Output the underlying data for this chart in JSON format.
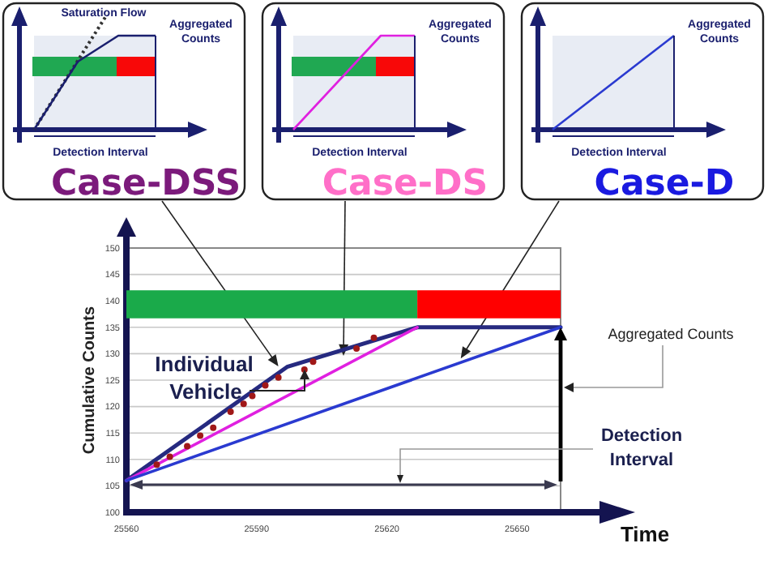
{
  "chart_data": {
    "type": "line",
    "xlabel": "Time",
    "ylabel": "Cumulative Counts",
    "xlim": [
      25560,
      25660
    ],
    "ylim": [
      100,
      150
    ],
    "xticks": [
      25560,
      25590,
      25620,
      25650
    ],
    "yticks": [
      100,
      105,
      110,
      115,
      120,
      125,
      130,
      135,
      140,
      145,
      150
    ],
    "grid": "y",
    "series": [
      {
        "color": "#262a80",
        "x": [
          25560,
          25597,
          25627,
          25660
        ],
        "values": [
          106,
          127.5,
          135,
          135
        ]
      },
      {
        "color": "#e020e0",
        "x": [
          25560,
          25627
        ],
        "values": [
          106,
          135
        ]
      },
      {
        "color": "#2a3ad0",
        "x": [
          25560,
          25660
        ],
        "values": [
          106,
          135
        ]
      },
      {
        "type": "scatter",
        "color": "#a01818",
        "x": [
          25567,
          25570,
          25574,
          25577,
          25580,
          25584,
          25587,
          25589,
          25592,
          25595,
          25601,
          25603,
          25613,
          25617
        ],
        "values": [
          109,
          110.5,
          112.5,
          114.5,
          116,
          119,
          120.5,
          122,
          124,
          125.5,
          127,
          128.5,
          131,
          133
        ]
      }
    ],
    "bands": [
      {
        "axis": "x",
        "from": 25560,
        "to": 25627,
        "color": "#1aaa4a"
      },
      {
        "axis": "x",
        "from": 25627,
        "to": 25660,
        "color": "#ff0000"
      }
    ],
    "annotations": [
      "Saturation Flow",
      "Aggregated Counts",
      "Detection Interval",
      {
        "text": "Case-DSS",
        "x": 25595,
        "y": 127
      },
      "Aggregated Counts",
      "Detection Interval",
      {
        "text": "Case-DS",
        "x": 25610,
        "y": 129
      },
      "Aggregated Counts",
      "Detection Interval",
      {
        "text": "Case-D",
        "x": 25637,
        "y": 128.5
      },
      "Individual Vehicle",
      "Aggregated Counts",
      "Detection Interval"
    ]
  }
}
